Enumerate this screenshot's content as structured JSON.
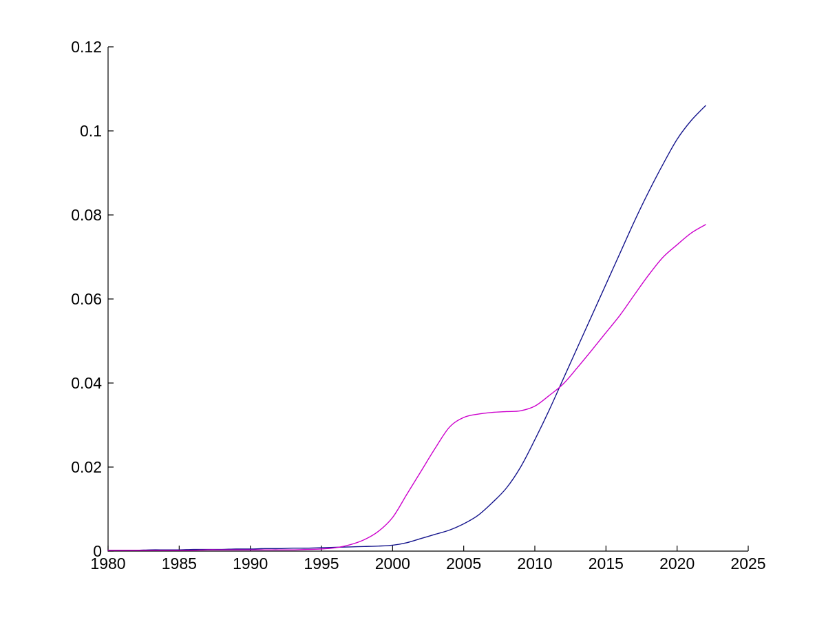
{
  "figure": {
    "background": "#ffffff"
  },
  "chart_data": {
    "type": "line",
    "title": "",
    "xlabel": "",
    "ylabel": "",
    "grid": false,
    "legend": null,
    "box": false,
    "tick_direction": "in",
    "axis_color": "#000000",
    "xlim": [
      1980,
      2025
    ],
    "ylim": [
      0,
      0.12
    ],
    "xticks": [
      1980,
      1985,
      1990,
      1995,
      2000,
      2005,
      2010,
      2015,
      2020,
      2025
    ],
    "xtick_labels": [
      "1980",
      "1985",
      "1990",
      "1995",
      "2000",
      "2005",
      "2010",
      "2015",
      "2020",
      "2025"
    ],
    "yticks": [
      0,
      0.02,
      0.04,
      0.06,
      0.08,
      0.1,
      0.12
    ],
    "ytick_labels": [
      "0",
      "0.02",
      "0.04",
      "0.06",
      "0.08",
      "0.1",
      "0.12"
    ],
    "x": [
      1980,
      1981,
      1982,
      1983,
      1984,
      1985,
      1986,
      1987,
      1988,
      1989,
      1990,
      1991,
      1992,
      1993,
      1994,
      1995,
      1996,
      1997,
      1998,
      1999,
      2000,
      2001,
      2002,
      2003,
      2004,
      2005,
      2006,
      2007,
      2008,
      2009,
      2010,
      2011,
      2012,
      2013,
      2014,
      2015,
      2016,
      2017,
      2018,
      2019,
      2020,
      2021,
      2022
    ],
    "series": [
      {
        "name": "blue-curve",
        "color": "#14148c",
        "line_width": 1.4,
        "values": [
          0.0002,
          0.0002,
          0.0002,
          0.0003,
          0.0003,
          0.0003,
          0.0004,
          0.0004,
          0.0004,
          0.0005,
          0.0005,
          0.0006,
          0.0006,
          0.0007,
          0.0007,
          0.0008,
          0.0009,
          0.001,
          0.0011,
          0.0012,
          0.0014,
          0.002,
          0.003,
          0.004,
          0.005,
          0.0065,
          0.0085,
          0.0115,
          0.015,
          0.02,
          0.0265,
          0.0335,
          0.041,
          0.0485,
          0.056,
          0.0635,
          0.071,
          0.0785,
          0.0855,
          0.092,
          0.098,
          0.1025,
          0.106
        ]
      },
      {
        "name": "magenta-curve",
        "color": "#cc00cc",
        "line_width": 1.4,
        "values": [
          0.0002,
          0.0002,
          0.0002,
          0.0002,
          0.0002,
          0.0002,
          0.0002,
          0.0003,
          0.0003,
          0.0003,
          0.0003,
          0.0003,
          0.0003,
          0.0003,
          0.0004,
          0.0005,
          0.0008,
          0.0015,
          0.0027,
          0.0047,
          0.008,
          0.0135,
          0.019,
          0.0245,
          0.0295,
          0.0318,
          0.0326,
          0.033,
          0.0332,
          0.0334,
          0.0345,
          0.037,
          0.0398,
          0.0437,
          0.0478,
          0.052,
          0.0562,
          0.061,
          0.0657,
          0.0699,
          0.0729,
          0.0757,
          0.0777
        ]
      }
    ]
  }
}
